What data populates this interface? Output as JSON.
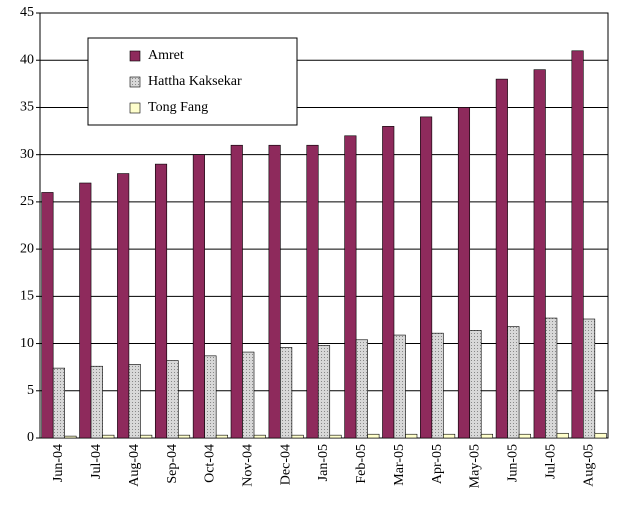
{
  "chart_data": {
    "type": "bar",
    "categories": [
      "Jun-04",
      "Jul-04",
      "Aug-04",
      "Sep-04",
      "Oct-04",
      "Nov-04",
      "Dec-04",
      "Jan-05",
      "Feb-05",
      "Mar-05",
      "Apr-05",
      "May-05",
      "Jun-05",
      "Jul-05",
      "Aug-05"
    ],
    "series": [
      {
        "name": "Amret",
        "color": "#8e2a5c",
        "values": [
          26,
          27,
          28,
          29,
          30,
          31,
          31,
          31,
          32,
          33,
          34,
          35,
          38,
          39,
          41
        ]
      },
      {
        "name": "Hattha Kaksekar",
        "color": "#c4c4c4",
        "values": [
          7.4,
          7.6,
          7.8,
          8.2,
          8.7,
          9.1,
          9.6,
          9.8,
          10.4,
          10.9,
          11.1,
          11.4,
          11.8,
          12.7,
          12.6
        ]
      },
      {
        "name": "Tong Fang",
        "color": "#ffffcc",
        "values": [
          0.2,
          0.3,
          0.3,
          0.3,
          0.3,
          0.3,
          0.3,
          0.3,
          0.4,
          0.4,
          0.4,
          0.4,
          0.4,
          0.5,
          0.5
        ]
      }
    ],
    "ylim": [
      0,
      45
    ],
    "yticks": [
      0,
      5,
      10,
      15,
      20,
      25,
      30,
      35,
      40,
      45
    ],
    "grid": true,
    "legend": "upper left"
  }
}
